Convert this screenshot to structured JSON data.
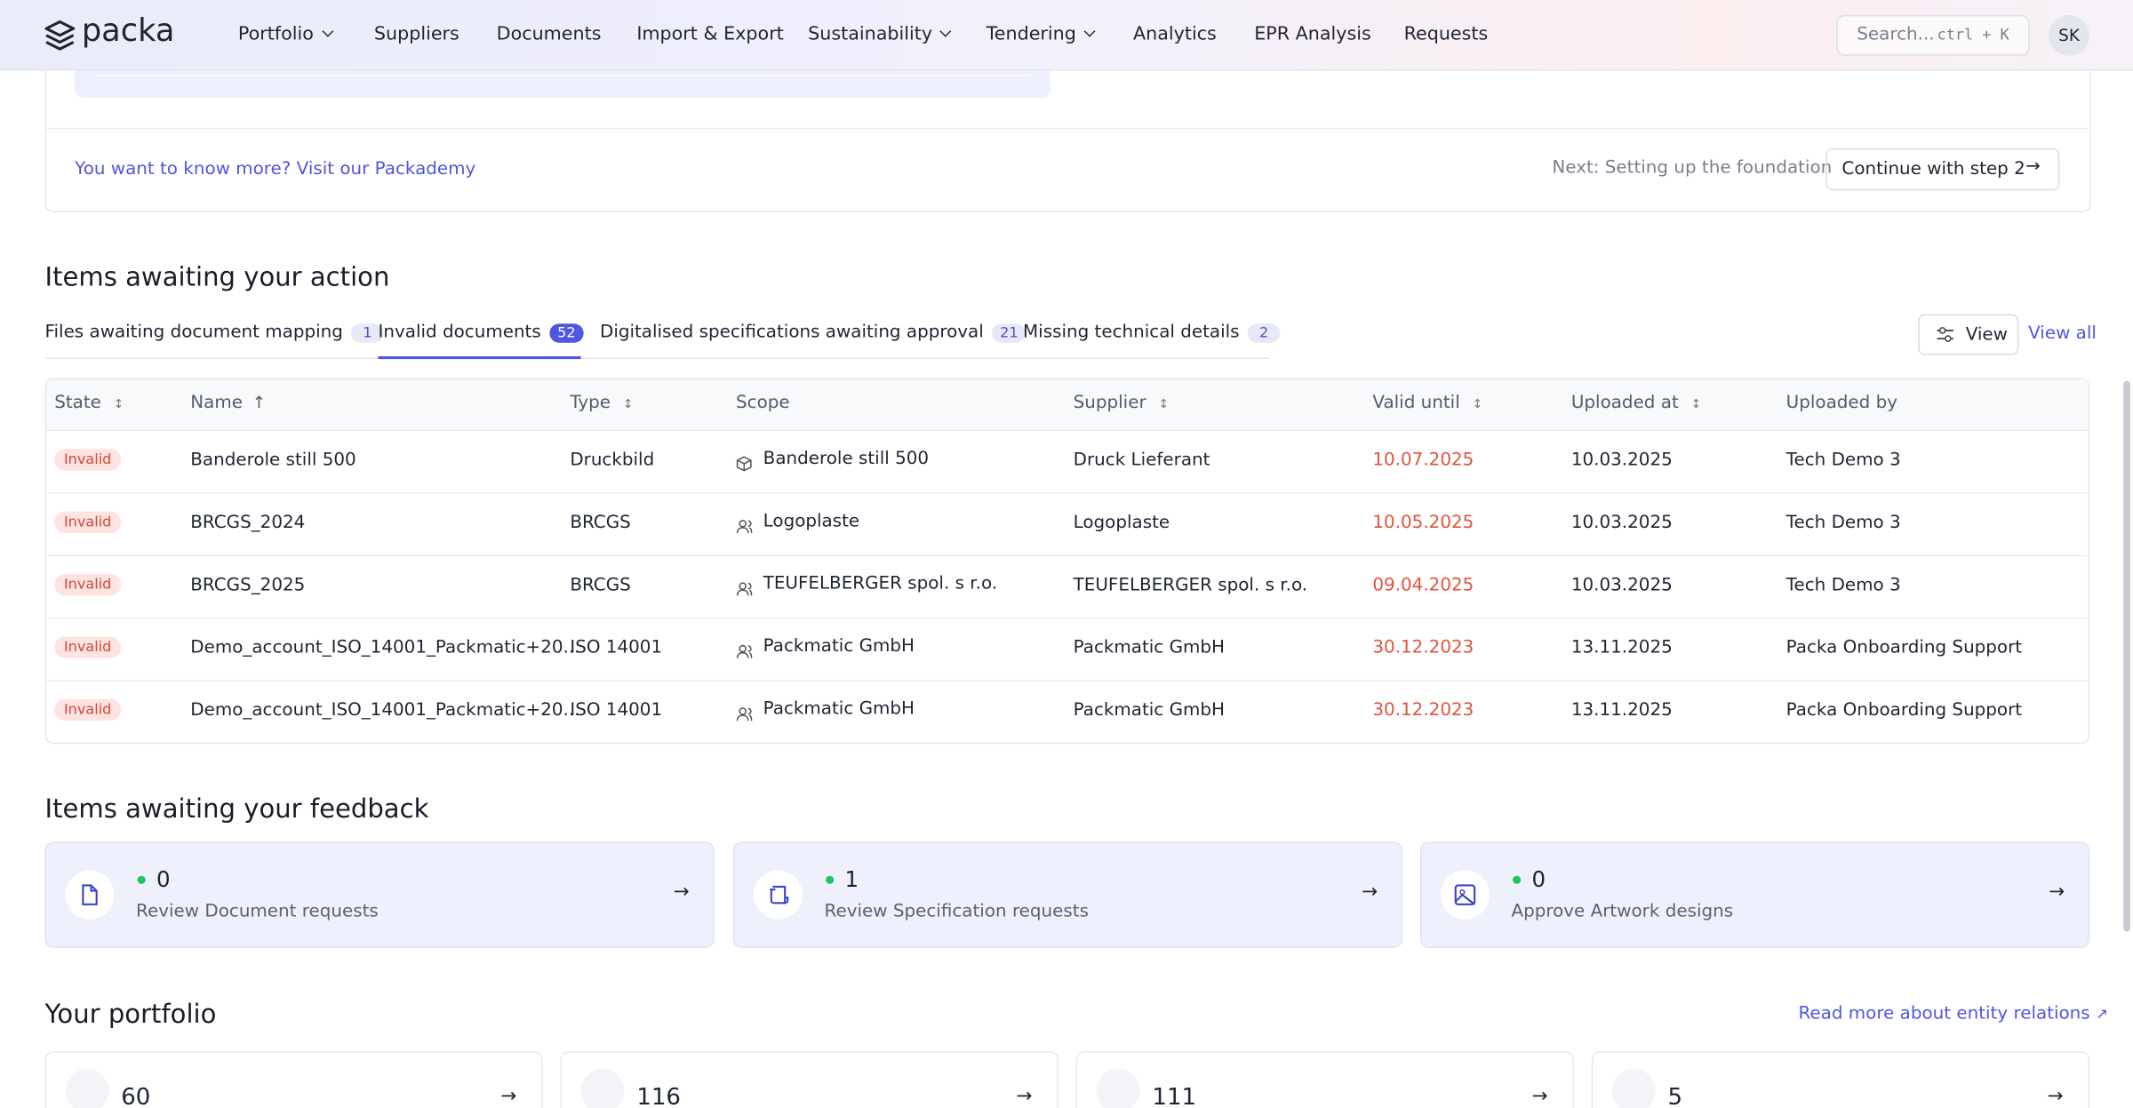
{
  "nav": {
    "logo": "packa",
    "items": [
      "Portfolio",
      "Suppliers",
      "Documents",
      "Import & Export",
      "Sustainability",
      "Tendering",
      "Analytics",
      "EPR Analysis",
      "Requests"
    ],
    "search": "Search...",
    "shortcut": "ctrl + K",
    "avatar": "SK"
  },
  "onboarding": {
    "link": "You want to know more? Visit our Packademy",
    "next": "Next: Setting up the foundation",
    "button": "Continue with step 2"
  },
  "actions": {
    "title": "Items awaiting your action",
    "tabs": [
      {
        "label": "Files awaiting document mapping",
        "count": 1
      },
      {
        "label": "Invalid documents",
        "count": 52
      },
      {
        "label": "Digitalised specifications awaiting approval",
        "count": 21
      },
      {
        "label": "Missing technical details",
        "count": 2
      }
    ],
    "view": "View",
    "view_all": "View all",
    "table": {
      "columns": [
        "State",
        "Name",
        "Type",
        "Scope",
        "Supplier",
        "Valid until",
        "Uploaded at",
        "Uploaded by"
      ],
      "rows": [
        [
          "Invalid",
          "Banderole still 500",
          "Druckbild",
          "Banderole still 500",
          "Druck Lieferant",
          "10.07.2025",
          "10.03.2025",
          "Tech Demo 3"
        ],
        [
          "Invalid",
          "BRCGS_2024",
          "BRCGS",
          "Logoplaste",
          "Logoplaste",
          "10.05.2025",
          "10.03.2025",
          "Tech Demo 3"
        ],
        [
          "Invalid",
          "BRCGS_2025",
          "BRCGS",
          "TEUFELBERGER spol. s r.o.",
          "TEUFELBERGER spol. s r.o.",
          "09.04.2025",
          "10.03.2025",
          "Tech Demo 3"
        ],
        [
          "Invalid",
          "Demo_account_ISO_14001_Packmatic+20...",
          "ISO 14001",
          "Packmatic GmbH",
          "Packmatic GmbH",
          "30.12.2023",
          "13.11.2025",
          "Packa Onboarding Support"
        ],
        [
          "Invalid",
          "Demo_account_ISO_14001_Packmatic+20...",
          "ISO 14001",
          "Packmatic GmbH",
          "Packmatic GmbH",
          "30.12.2023",
          "13.11.2025",
          "Packa Onboarding Support"
        ]
      ]
    }
  },
  "feedback": {
    "title": "Items awaiting your feedback",
    "cards": [
      {
        "count": 0,
        "label": "Review Document requests"
      },
      {
        "count": 1,
        "label": "Review Specification requests"
      },
      {
        "count": 0,
        "label": "Approve Artwork designs"
      }
    ]
  },
  "portfolio": {
    "title": "Your portfolio",
    "link": "Read more about entity relations",
    "cards": [
      {
        "count": 60
      },
      {
        "count": 116
      },
      {
        "count": 111
      },
      {
        "count": 5
      }
    ]
  }
}
